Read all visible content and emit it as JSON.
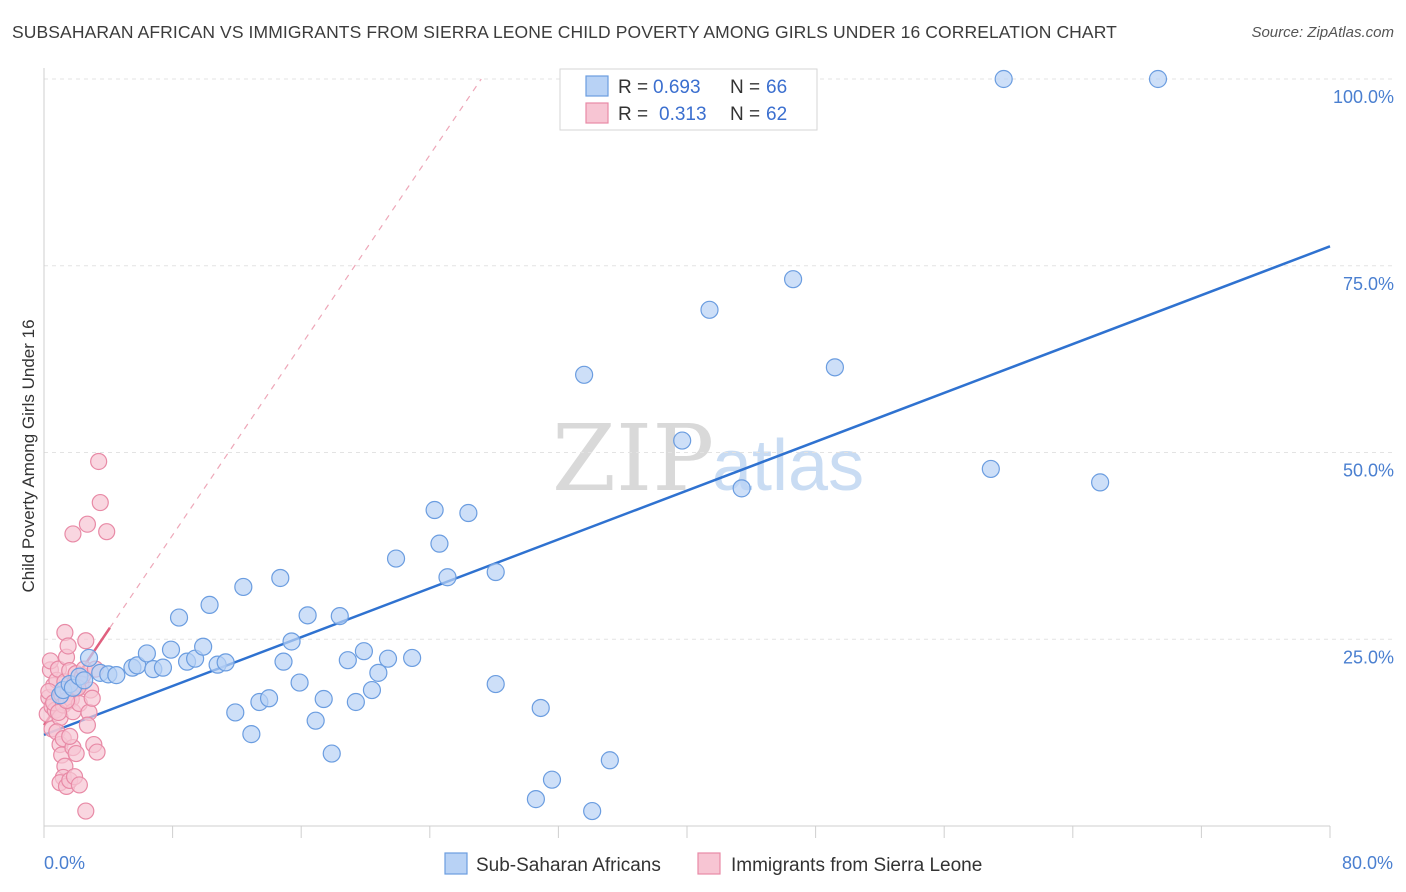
{
  "title": "SUBSAHARAN AFRICAN VS IMMIGRANTS FROM SIERRA LEONE CHILD POVERTY AMONG GIRLS UNDER 16 CORRELATION CHART",
  "source": "Source: ZipAtlas.com",
  "watermark": {
    "left": "ZIP",
    "right": "atlas"
  },
  "colors": {
    "blue_fill": "#b8d2f5",
    "blue_stroke": "#6b9de0",
    "blue_line": "#2f72d0",
    "pink_fill": "#f7c5d3",
    "pink_stroke": "#e88aa6",
    "pink_line": "#e0607f",
    "axis_label": "#4a7fd0"
  },
  "legend": {
    "r_label": "R =",
    "n_label": "N =",
    "rows": [
      {
        "series": "blue",
        "r": "0.693",
        "n": "66"
      },
      {
        "series": "pink",
        "r": "0.313",
        "n": "62"
      }
    ]
  },
  "chart_data": {
    "type": "scatter",
    "xlabel": "",
    "ylabel": "Child Poverty Among Girls Under 16",
    "xlim": [
      0,
      80
    ],
    "ylim": [
      0,
      100
    ],
    "x_tick_labels": [
      "0.0%",
      "80.0%"
    ],
    "y_tick_labels": [
      "25.0%",
      "50.0%",
      "75.0%",
      "100.0%"
    ],
    "y_ticks": [
      25,
      50,
      75,
      100
    ],
    "x_ticks": [
      0,
      8,
      16,
      24,
      32,
      40,
      48,
      56,
      64,
      72,
      80
    ],
    "grid": true,
    "series": [
      {
        "name": "Sub-Saharan Africans",
        "color": "blue",
        "r": 0.693,
        "n": 66,
        "trend": {
          "x": [
            0,
            80
          ],
          "y": [
            12.2,
            77.6
          ],
          "style": "solid"
        },
        "points": [
          [
            1.0,
            17.5
          ],
          [
            1.2,
            18.2
          ],
          [
            1.6,
            19.0
          ],
          [
            1.8,
            18.5
          ],
          [
            2.2,
            20.0
          ],
          [
            2.5,
            19.5
          ],
          [
            2.8,
            22.5
          ],
          [
            3.5,
            20.5
          ],
          [
            4.0,
            20.3
          ],
          [
            4.5,
            20.2
          ],
          [
            5.5,
            21.2
          ],
          [
            5.8,
            21.5
          ],
          [
            6.4,
            23.1
          ],
          [
            6.8,
            21.0
          ],
          [
            7.4,
            21.2
          ],
          [
            7.9,
            23.6
          ],
          [
            8.4,
            27.9
          ],
          [
            8.9,
            22.0
          ],
          [
            9.4,
            22.4
          ],
          [
            9.9,
            24.0
          ],
          [
            10.3,
            29.6
          ],
          [
            10.8,
            21.6
          ],
          [
            11.3,
            21.9
          ],
          [
            11.9,
            15.2
          ],
          [
            12.4,
            32.0
          ],
          [
            12.9,
            12.3
          ],
          [
            13.4,
            16.6
          ],
          [
            14.0,
            17.1
          ],
          [
            14.7,
            33.2
          ],
          [
            14.9,
            22.0
          ],
          [
            15.4,
            24.7
          ],
          [
            15.9,
            19.2
          ],
          [
            16.4,
            28.2
          ],
          [
            16.9,
            14.1
          ],
          [
            17.4,
            17.0
          ],
          [
            17.9,
            9.7
          ],
          [
            18.4,
            28.1
          ],
          [
            18.9,
            22.2
          ],
          [
            19.4,
            16.6
          ],
          [
            19.9,
            23.4
          ],
          [
            20.4,
            18.2
          ],
          [
            20.8,
            20.5
          ],
          [
            21.4,
            22.4
          ],
          [
            21.9,
            35.8
          ],
          [
            22.9,
            22.5
          ],
          [
            24.3,
            42.3
          ],
          [
            24.6,
            37.8
          ],
          [
            25.1,
            33.3
          ],
          [
            26.4,
            41.9
          ],
          [
            28.1,
            34.0
          ],
          [
            28.1,
            19.0
          ],
          [
            30.6,
            3.6
          ],
          [
            30.9,
            15.8
          ],
          [
            31.6,
            6.2
          ],
          [
            33.6,
            60.4
          ],
          [
            34.1,
            2.0
          ],
          [
            35.2,
            8.8
          ],
          [
            39.7,
            51.6
          ],
          [
            41.4,
            69.1
          ],
          [
            43.4,
            45.2
          ],
          [
            46.6,
            73.2
          ],
          [
            49.2,
            61.4
          ],
          [
            58.9,
            47.8
          ],
          [
            59.7,
            100.0
          ],
          [
            65.7,
            46.0
          ],
          [
            69.3,
            100.0
          ]
        ]
      },
      {
        "name": "Immigrants from Sierra Leone",
        "color": "pink",
        "r": 0.313,
        "n": 62,
        "trend": {
          "x": [
            0,
            27.2
          ],
          "y": [
            13.5,
            100.0
          ],
          "solid_until_x": 4.1,
          "style": "solid-then-dashed"
        },
        "points": [
          [
            0.2,
            15.0
          ],
          [
            0.3,
            17.2
          ],
          [
            0.4,
            20.9
          ],
          [
            0.5,
            16.0
          ],
          [
            0.6,
            18.8
          ],
          [
            0.4,
            22.1
          ],
          [
            0.5,
            13.0
          ],
          [
            0.7,
            15.5
          ],
          [
            0.8,
            19.5
          ],
          [
            0.3,
            18.0
          ],
          [
            0.6,
            16.5
          ],
          [
            0.9,
            21.0
          ],
          [
            1.0,
            14.5
          ],
          [
            1.1,
            17.6
          ],
          [
            1.2,
            16.2
          ],
          [
            0.8,
            12.6
          ],
          [
            1.0,
            10.9
          ],
          [
            1.3,
            19.3
          ],
          [
            1.4,
            22.6
          ],
          [
            1.5,
            16.7
          ],
          [
            1.6,
            20.8
          ],
          [
            1.1,
            9.5
          ],
          [
            1.3,
            8.0
          ],
          [
            1.2,
            6.5
          ],
          [
            1.0,
            5.8
          ],
          [
            1.4,
            5.3
          ],
          [
            1.6,
            6.1
          ],
          [
            1.5,
            18.2
          ],
          [
            1.7,
            17.0
          ],
          [
            1.8,
            15.3
          ],
          [
            1.3,
            25.9
          ],
          [
            1.5,
            24.1
          ],
          [
            1.2,
            11.7
          ],
          [
            1.9,
            19.1
          ],
          [
            2.0,
            20.4
          ],
          [
            2.1,
            18.6
          ],
          [
            1.8,
            10.5
          ],
          [
            1.6,
            12.0
          ],
          [
            2.2,
            16.4
          ],
          [
            2.4,
            20.1
          ],
          [
            2.0,
            9.7
          ],
          [
            1.9,
            6.6
          ],
          [
            2.2,
            5.5
          ],
          [
            2.5,
            21.0
          ],
          [
            2.3,
            19.0
          ],
          [
            2.6,
            24.8
          ],
          [
            2.8,
            15.2
          ],
          [
            2.7,
            13.5
          ],
          [
            2.9,
            18.2
          ],
          [
            3.0,
            17.1
          ],
          [
            3.1,
            10.9
          ],
          [
            3.2,
            21.0
          ],
          [
            3.3,
            9.9
          ],
          [
            1.8,
            39.1
          ],
          [
            2.7,
            40.4
          ],
          [
            3.4,
            48.8
          ],
          [
            3.5,
            43.3
          ],
          [
            3.9,
            39.4
          ],
          [
            2.1,
            18.5
          ],
          [
            0.9,
            15.2
          ],
          [
            2.6,
            2.0
          ],
          [
            1.4,
            16.8
          ]
        ]
      }
    ]
  },
  "bottom_legend": [
    {
      "series": "blue",
      "label": "Sub-Saharan Africans"
    },
    {
      "series": "pink",
      "label": "Immigrants from Sierra Leone"
    }
  ]
}
